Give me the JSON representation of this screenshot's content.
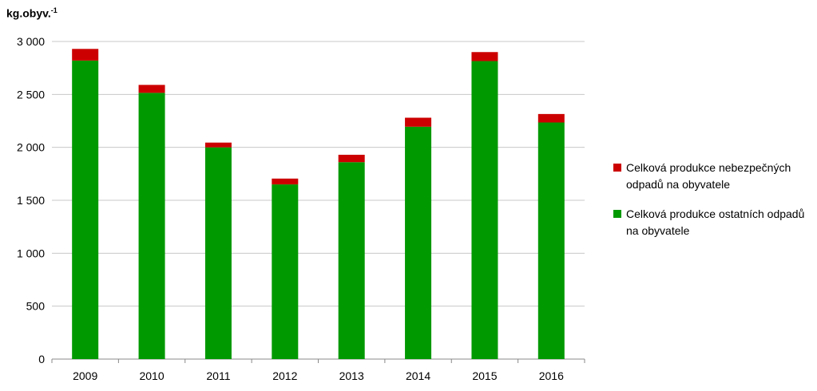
{
  "chart_data": {
    "type": "bar",
    "stacked": true,
    "unit_label": "kg.obyv.",
    "unit_exponent": "-1",
    "categories": [
      "2009",
      "2010",
      "2011",
      "2012",
      "2013",
      "2014",
      "2015",
      "2016"
    ],
    "series": [
      {
        "name": "Celková produkce ostatních odpadů na obyvatele",
        "color": "#009900",
        "values": [
          2820,
          2515,
          2000,
          1650,
          1860,
          2195,
          2815,
          2235
        ]
      },
      {
        "name": "Celková produkce nebezpečných odpadů na obyvatele",
        "color": "#cc0000",
        "values": [
          110,
          75,
          45,
          55,
          70,
          85,
          85,
          80
        ]
      }
    ],
    "yticks": [
      "0",
      "500",
      "1 000",
      "1 500",
      "2 000",
      "2 500",
      "3 000"
    ],
    "ylim": [
      0,
      3000
    ],
    "grid": true,
    "legend_position": "right"
  }
}
